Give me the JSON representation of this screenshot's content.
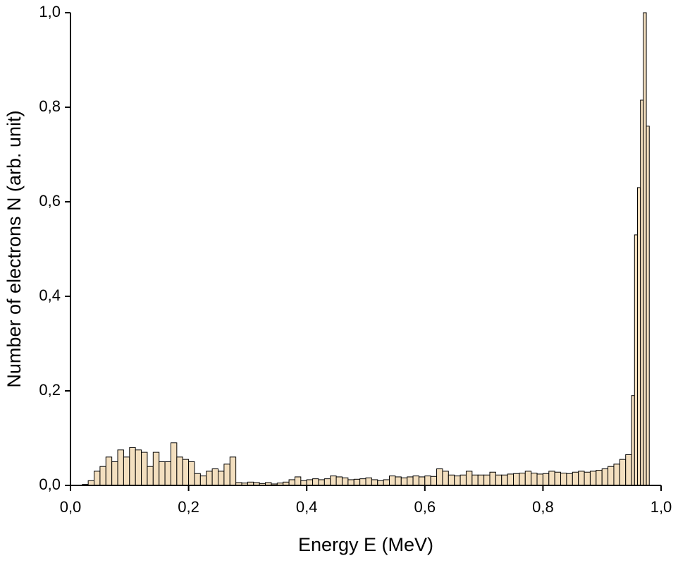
{
  "chart_data": {
    "type": "histogram",
    "xlabel": "Energy E (MeV)",
    "ylabel": "Number of electrons N (arb. unit)",
    "bins": [
      0.02,
      0.03,
      0.04,
      0.05,
      0.06,
      0.07,
      0.08,
      0.09,
      0.1,
      0.11,
      0.12,
      0.13,
      0.14,
      0.15,
      0.16,
      0.17,
      0.18,
      0.19,
      0.2,
      0.21,
      0.22,
      0.23,
      0.24,
      0.25,
      0.26,
      0.27,
      0.28,
      0.29,
      0.3,
      0.31,
      0.32,
      0.33,
      0.34,
      0.35,
      0.36,
      0.37,
      0.38,
      0.39,
      0.4,
      0.41,
      0.42,
      0.43,
      0.44,
      0.45,
      0.46,
      0.47,
      0.48,
      0.49,
      0.5,
      0.51,
      0.52,
      0.53,
      0.54,
      0.55,
      0.56,
      0.57,
      0.58,
      0.59,
      0.6,
      0.61,
      0.62,
      0.63,
      0.64,
      0.65,
      0.66,
      0.67,
      0.68,
      0.69,
      0.7,
      0.71,
      0.72,
      0.73,
      0.74,
      0.75,
      0.76,
      0.77,
      0.78,
      0.79,
      0.8,
      0.81,
      0.82,
      0.83,
      0.84,
      0.85,
      0.86,
      0.87,
      0.88,
      0.89,
      0.9,
      0.91,
      0.92,
      0.93,
      0.94,
      0.95,
      0.955,
      0.96,
      0.965,
      0.97,
      0.975,
      0.98
    ],
    "counts": [
      0.002,
      0.01,
      0.03,
      0.04,
      0.06,
      0.05,
      0.075,
      0.06,
      0.08,
      0.075,
      0.07,
      0.04,
      0.07,
      0.05,
      0.05,
      0.09,
      0.06,
      0.055,
      0.05,
      0.025,
      0.02,
      0.03,
      0.035,
      0.03,
      0.045,
      0.06,
      0.006,
      0.005,
      0.007,
      0.006,
      0.004,
      0.006,
      0.003,
      0.005,
      0.007,
      0.012,
      0.018,
      0.01,
      0.012,
      0.014,
      0.012,
      0.014,
      0.02,
      0.018,
      0.016,
      0.012,
      0.013,
      0.014,
      0.016,
      0.012,
      0.01,
      0.012,
      0.02,
      0.018,
      0.016,
      0.018,
      0.02,
      0.018,
      0.02,
      0.019,
      0.035,
      0.03,
      0.022,
      0.02,
      0.022,
      0.03,
      0.022,
      0.022,
      0.022,
      0.028,
      0.022,
      0.022,
      0.024,
      0.025,
      0.026,
      0.03,
      0.026,
      0.024,
      0.025,
      0.03,
      0.028,
      0.026,
      0.025,
      0.028,
      0.03,
      0.028,
      0.03,
      0.032,
      0.035,
      0.04,
      0.045,
      0.055,
      0.065,
      0.19,
      0.53,
      0.63,
      0.815,
      1.0,
      0.76
    ],
    "color": "#f3dfbf",
    "xlim": [
      0,
      1.0
    ],
    "ylim": [
      0,
      1.0
    ],
    "xticks": [
      {
        "value": 0,
        "label": "0,0"
      },
      {
        "value": 0.2,
        "label": "0,2"
      },
      {
        "value": 0.4,
        "label": "0,4"
      },
      {
        "value": 0.6,
        "label": "0,6"
      },
      {
        "value": 0.8,
        "label": "0,8"
      },
      {
        "value": 1.0,
        "label": "1,0"
      }
    ],
    "yticks": [
      {
        "value": 0,
        "label": "0,0"
      },
      {
        "value": 0.2,
        "label": "0,2"
      },
      {
        "value": 0.4,
        "label": "0,4"
      },
      {
        "value": 0.6,
        "label": "0,6"
      },
      {
        "value": 0.8,
        "label": "0,8"
      },
      {
        "value": 1.0,
        "label": "1,0"
      }
    ]
  }
}
